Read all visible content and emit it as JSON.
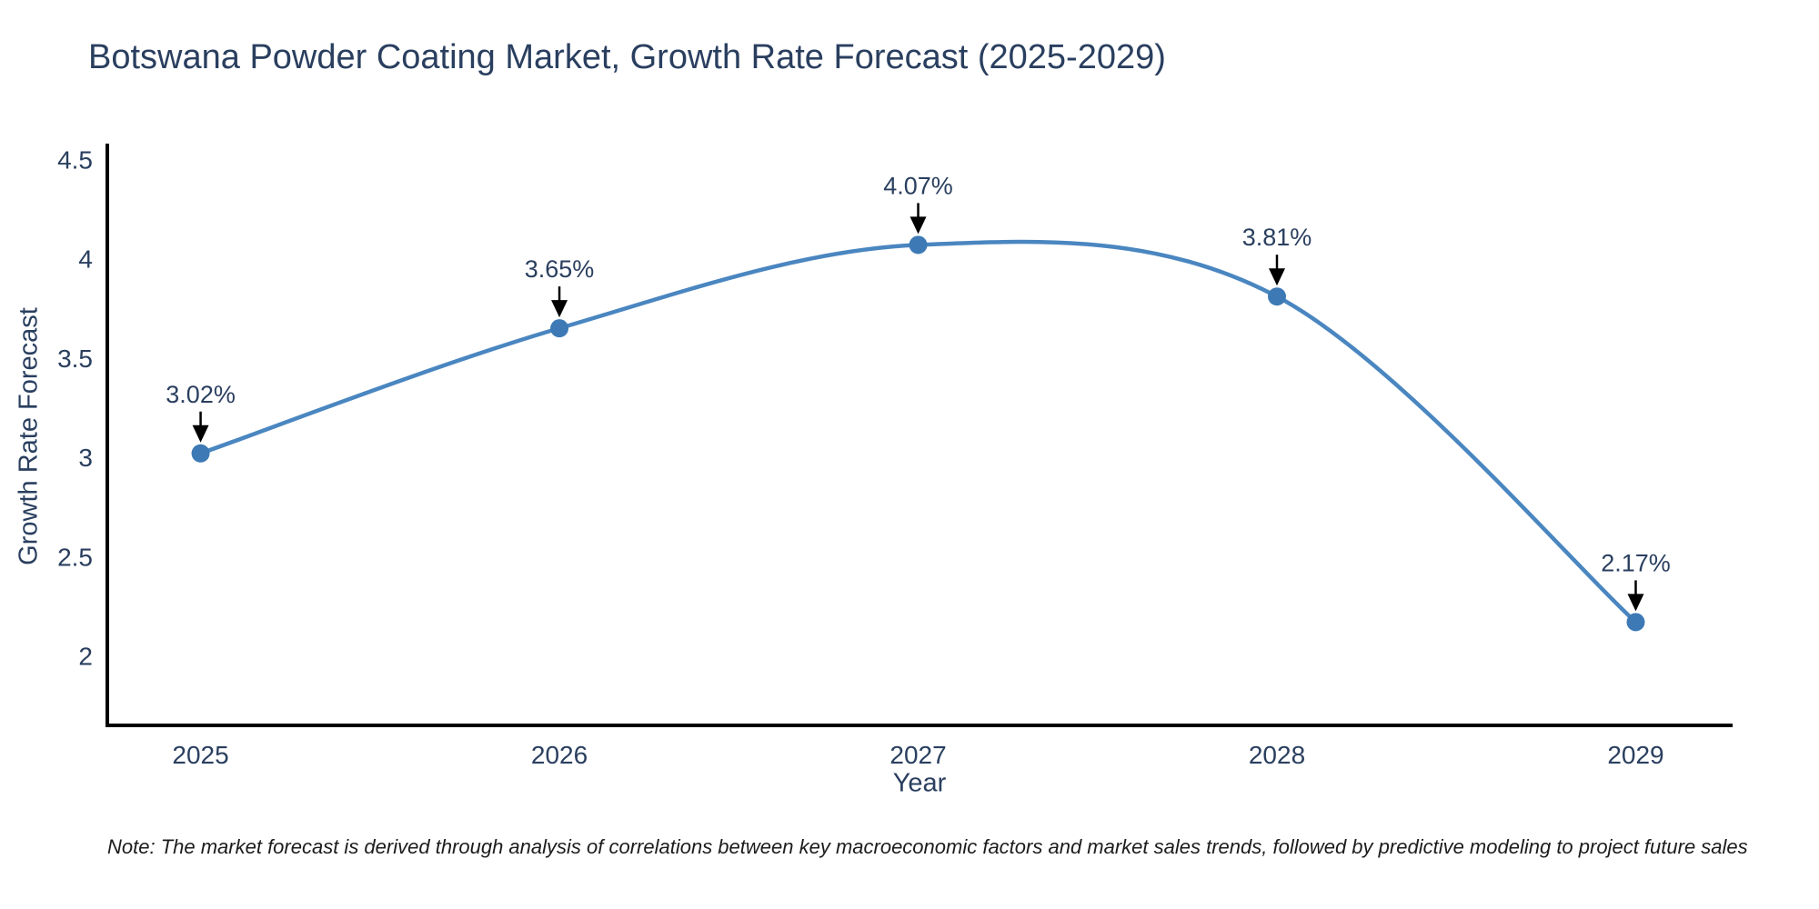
{
  "title": "Botswana Powder Coating Market, Growth Rate Forecast (2025-2029)",
  "note": "Note: The market forecast is derived through analysis of correlations between key macroeconomic factors and market sales trends, followed by predictive modeling to project future sales",
  "colors": {
    "title_text": "#2a3f5f",
    "axis_text": "#2a3f5f",
    "annotation_text": "#2a3f5f",
    "line": "#4a86c0",
    "marker": "#3d7ab5",
    "arrow": "#000000",
    "spine": "#000000",
    "background": "#ffffff"
  },
  "chart_data": {
    "type": "line",
    "title": "Botswana Powder Coating Market, Growth Rate Forecast (2025-2029)",
    "x": [
      2025,
      2026,
      2027,
      2028,
      2029
    ],
    "series": [
      {
        "name": "Growth Rate Forecast",
        "values": [
          3.02,
          3.65,
          4.07,
          3.81,
          2.17
        ]
      }
    ],
    "point_labels": [
      "3.02%",
      "3.65%",
      "4.07%",
      "3.81%",
      "2.17%"
    ],
    "xlabel": "Year",
    "ylabel": "Growth Rate Forecast",
    "xticks": [
      "2025",
      "2026",
      "2027",
      "2028",
      "2029"
    ],
    "yticks": [
      2,
      2.5,
      3,
      3.5,
      4,
      4.5
    ],
    "xlim": [
      2024.74,
      2029.27
    ],
    "ylim": [
      1.65,
      4.58
    ],
    "grid": false,
    "legend": false,
    "line_shape": "spline",
    "markers": true,
    "annotations": "value labels with downward arrows above each point"
  }
}
